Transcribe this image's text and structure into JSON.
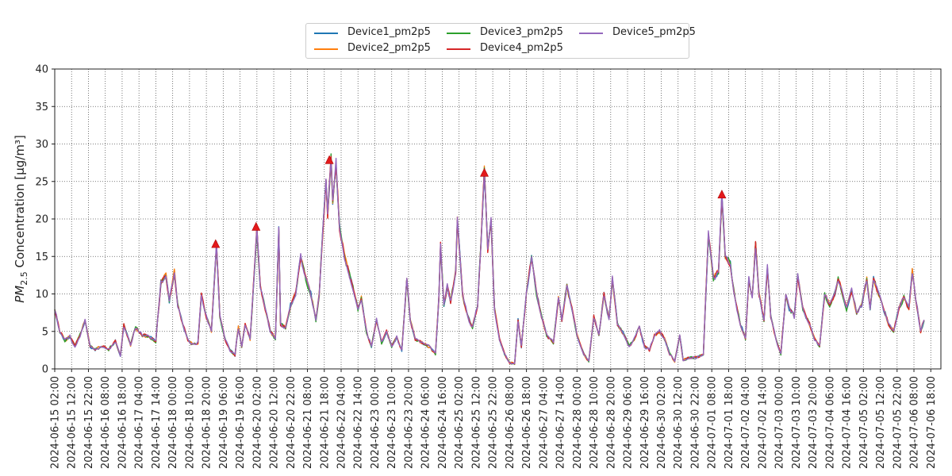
{
  "chart_data": {
    "type": "line",
    "ylabel": "PM2.5 Concentration [µg/m³]",
    "ylabel_parts": {
      "quantity": "PM",
      "subscript": "2.5",
      "rest": " Concentration [µg/m³]"
    },
    "ylim": [
      0,
      40
    ],
    "yticks": [
      "0",
      "5",
      "10",
      "15",
      "20",
      "25",
      "30",
      "35",
      "40"
    ],
    "x_range": [
      "2024-06-15 02:00",
      "2024-07-07 00:00"
    ],
    "grid": true,
    "legend_position": "top-center",
    "xtick_labels": [
      "2024-06-15 02:00",
      "2024-06-15 12:00",
      "2024-06-15 22:00",
      "2024-06-16 08:00",
      "2024-06-16 18:00",
      "2024-06-17 04:00",
      "2024-06-17 14:00",
      "2024-06-18 00:00",
      "2024-06-18 10:00",
      "2024-06-18 20:00",
      "2024-06-19 06:00",
      "2024-06-19 16:00",
      "2024-06-20 02:00",
      "2024-06-20 12:00",
      "2024-06-20 22:00",
      "2024-06-21 08:00",
      "2024-06-21 18:00",
      "2024-06-22 04:00",
      "2024-06-22 14:00",
      "2024-06-23 00:00",
      "2024-06-23 10:00",
      "2024-06-23 20:00",
      "2024-06-24 06:00",
      "2024-06-24 16:00",
      "2024-06-25 02:00",
      "2024-06-25 12:00",
      "2024-06-25 22:00",
      "2024-06-26 08:00",
      "2024-06-26 18:00",
      "2024-06-27 04:00",
      "2024-06-27 14:00",
      "2024-06-28 00:00",
      "2024-06-28 10:00",
      "2024-06-28 20:00",
      "2024-06-29 06:00",
      "2024-06-29 16:00",
      "2024-06-30 02:00",
      "2024-06-30 12:00",
      "2024-06-30 22:00",
      "2024-07-01 08:00",
      "2024-07-01 18:00",
      "2024-07-02 04:00",
      "2024-07-02 14:00",
      "2024-07-03 00:00",
      "2024-07-03 10:00",
      "2024-07-03 20:00",
      "2024-07-04 06:00",
      "2024-07-04 16:00",
      "2024-07-05 02:00",
      "2024-07-05 12:00",
      "2024-07-05 22:00",
      "2024-07-06 08:00",
      "2024-07-06 18:00"
    ],
    "series": [
      {
        "name": "Device1_pm2p5",
        "color": "#1f77b4"
      },
      {
        "name": "Device2_pm2p5",
        "color": "#ff7f0e"
      },
      {
        "name": "Device3_pm2p5",
        "color": "#2ca02c"
      },
      {
        "name": "Device4_pm2p5",
        "color": "#d62728"
      },
      {
        "name": "Device5_pm2p5",
        "color": "#9467bd"
      }
    ],
    "base_profile": [
      [
        "2024-06-15 02:00",
        8.0
      ],
      [
        "2024-06-15 05:00",
        5.0
      ],
      [
        "2024-06-15 08:00",
        3.8
      ],
      [
        "2024-06-15 11:00",
        4.3
      ],
      [
        "2024-06-15 14:00",
        3.0
      ],
      [
        "2024-06-15 17:00",
        4.5
      ],
      [
        "2024-06-15 20:00",
        6.5
      ],
      [
        "2024-06-15 23:00",
        3.0
      ],
      [
        "2024-06-16 02:00",
        2.6
      ],
      [
        "2024-06-16 06:00",
        3.0
      ],
      [
        "2024-06-16 10:00",
        2.6
      ],
      [
        "2024-06-16 14:00",
        3.7
      ],
      [
        "2024-06-16 17:00",
        1.8
      ],
      [
        "2024-06-16 19:00",
        5.8
      ],
      [
        "2024-06-16 23:00",
        3.2
      ],
      [
        "2024-06-17 02:00",
        5.5
      ],
      [
        "2024-06-17 06:00",
        4.5
      ],
      [
        "2024-06-17 10:00",
        4.3
      ],
      [
        "2024-06-17 14:00",
        3.6
      ],
      [
        "2024-06-17 17:00",
        11.5
      ],
      [
        "2024-06-17 20:00",
        12.5
      ],
      [
        "2024-06-17 22:00",
        9.0
      ],
      [
        "2024-06-18 01:00",
        13.0
      ],
      [
        "2024-06-18 03:00",
        8.5
      ],
      [
        "2024-06-18 06:00",
        6.0
      ],
      [
        "2024-06-18 09:00",
        3.8
      ],
      [
        "2024-06-18 12:00",
        3.2
      ],
      [
        "2024-06-18 15:00",
        3.5
      ],
      [
        "2024-06-18 17:00",
        9.8
      ],
      [
        "2024-06-18 20:00",
        7.0
      ],
      [
        "2024-06-18 23:00",
        5.0
      ],
      [
        "2024-06-19 02:00",
        16.5
      ],
      [
        "2024-06-19 04:00",
        7.0
      ],
      [
        "2024-06-19 07:00",
        4.0
      ],
      [
        "2024-06-19 10:00",
        2.5
      ],
      [
        "2024-06-19 13:00",
        1.8
      ],
      [
        "2024-06-19 15:00",
        5.5
      ],
      [
        "2024-06-19 17:00",
        3.0
      ],
      [
        "2024-06-19 19:00",
        6.0
      ],
      [
        "2024-06-19 22:00",
        4.0
      ],
      [
        "2024-06-20 02:00",
        18.5
      ],
      [
        "2024-06-20 04:00",
        11.0
      ],
      [
        "2024-06-20 07:00",
        8.0
      ],
      [
        "2024-06-20 10:00",
        5.0
      ],
      [
        "2024-06-20 13:00",
        4.0
      ],
      [
        "2024-06-20 15:00",
        18.5
      ],
      [
        "2024-06-20 16:00",
        6.0
      ],
      [
        "2024-06-20 19:00",
        5.5
      ],
      [
        "2024-06-20 22:00",
        8.5
      ],
      [
        "2024-06-21 01:00",
        10.0
      ],
      [
        "2024-06-21 04:00",
        15.0
      ],
      [
        "2024-06-21 07:00",
        12.0
      ],
      [
        "2024-06-21 10:00",
        10.0
      ],
      [
        "2024-06-21 13:00",
        6.5
      ],
      [
        "2024-06-21 15:00",
        10.0
      ],
      [
        "2024-06-21 17:00",
        18.0
      ],
      [
        "2024-06-21 19:00",
        25.0
      ],
      [
        "2024-06-21 20:00",
        20.5
      ],
      [
        "2024-06-21 22:00",
        28.0
      ],
      [
        "2024-06-21 23:00",
        22.0
      ],
      [
        "2024-06-22 01:00",
        27.5
      ],
      [
        "2024-06-22 03:00",
        19.0
      ],
      [
        "2024-06-22 06:00",
        15.0
      ],
      [
        "2024-06-22 09:00",
        12.5
      ],
      [
        "2024-06-22 12:00",
        10.0
      ],
      [
        "2024-06-22 14:00",
        8.0
      ],
      [
        "2024-06-22 16:00",
        9.5
      ],
      [
        "2024-06-22 19:00",
        5.0
      ],
      [
        "2024-06-22 22:00",
        3.0
      ],
      [
        "2024-06-23 01:00",
        6.5
      ],
      [
        "2024-06-23 04:00",
        3.5
      ],
      [
        "2024-06-23 07:00",
        5.0
      ],
      [
        "2024-06-23 10:00",
        3.0
      ],
      [
        "2024-06-23 13:00",
        4.2
      ],
      [
        "2024-06-23 16:00",
        2.5
      ],
      [
        "2024-06-23 19:00",
        12.0
      ],
      [
        "2024-06-23 21:00",
        6.5
      ],
      [
        "2024-06-24 00:00",
        4.0
      ],
      [
        "2024-06-24 04:00",
        3.5
      ],
      [
        "2024-06-24 08:00",
        3.0
      ],
      [
        "2024-06-24 12:00",
        2.0
      ],
      [
        "2024-06-24 14:00",
        9.5
      ],
      [
        "2024-06-24 15:00",
        16.5
      ],
      [
        "2024-06-24 17:00",
        8.5
      ],
      [
        "2024-06-24 19:00",
        11.0
      ],
      [
        "2024-06-24 21:00",
        9.0
      ],
      [
        "2024-06-25 00:00",
        13.0
      ],
      [
        "2024-06-25 01:00",
        20.0
      ],
      [
        "2024-06-25 04:00",
        10.0
      ],
      [
        "2024-06-25 07:00",
        7.0
      ],
      [
        "2024-06-25 10:00",
        5.5
      ],
      [
        "2024-06-25 13:00",
        8.5
      ],
      [
        "2024-06-25 15:00",
        17.0
      ],
      [
        "2024-06-25 17:00",
        26.5
      ],
      [
        "2024-06-25 19:00",
        16.0
      ],
      [
        "2024-06-25 21:00",
        20.0
      ],
      [
        "2024-06-25 23:00",
        8.0
      ],
      [
        "2024-06-26 02:00",
        4.0
      ],
      [
        "2024-06-26 05:00",
        2.0
      ],
      [
        "2024-06-26 08:00",
        0.8
      ],
      [
        "2024-06-26 11:00",
        0.7
      ],
      [
        "2024-06-26 13:00",
        6.5
      ],
      [
        "2024-06-26 15:00",
        3.0
      ],
      [
        "2024-06-26 18:00",
        10.0
      ],
      [
        "2024-06-26 21:00",
        15.0
      ],
      [
        "2024-06-27 00:00",
        10.0
      ],
      [
        "2024-06-27 03:00",
        7.0
      ],
      [
        "2024-06-27 06:00",
        4.5
      ],
      [
        "2024-06-27 10:00",
        3.5
      ],
      [
        "2024-06-27 13:00",
        9.5
      ],
      [
        "2024-06-27 15:00",
        6.5
      ],
      [
        "2024-06-27 18:00",
        11.0
      ],
      [
        "2024-06-27 21:00",
        8.0
      ],
      [
        "2024-06-28 00:00",
        4.5
      ],
      [
        "2024-06-28 04:00",
        2.0
      ],
      [
        "2024-06-28 07:00",
        1.0
      ],
      [
        "2024-06-28 10:00",
        7.0
      ],
      [
        "2024-06-28 13:00",
        4.5
      ],
      [
        "2024-06-28 16:00",
        10.0
      ],
      [
        "2024-06-28 19:00",
        6.5
      ],
      [
        "2024-06-28 21:00",
        12.0
      ],
      [
        "2024-06-29 00:00",
        6.0
      ],
      [
        "2024-06-29 04:00",
        4.5
      ],
      [
        "2024-06-29 07:00",
        3.0
      ],
      [
        "2024-06-29 10:00",
        4.0
      ],
      [
        "2024-06-29 13:00",
        5.5
      ],
      [
        "2024-06-29 16:00",
        3.0
      ],
      [
        "2024-06-29 19:00",
        2.5
      ],
      [
        "2024-06-29 22:00",
        4.5
      ],
      [
        "2024-06-30 01:00",
        5.0
      ],
      [
        "2024-06-30 04:00",
        4.0
      ],
      [
        "2024-06-30 07:00",
        2.0
      ],
      [
        "2024-06-30 10:00",
        1.0
      ],
      [
        "2024-06-30 13:00",
        4.5
      ],
      [
        "2024-06-30 15:00",
        1.2
      ],
      [
        "2024-06-30 19:00",
        1.5
      ],
      [
        "2024-06-30 23:00",
        1.5
      ],
      [
        "2024-07-01 03:00",
        2.0
      ],
      [
        "2024-07-01 06:00",
        18.0
      ],
      [
        "2024-07-01 09:00",
        12.0
      ],
      [
        "2024-07-01 12:00",
        13.0
      ],
      [
        "2024-07-01 14:00",
        23.0
      ],
      [
        "2024-07-01 16:00",
        15.0
      ],
      [
        "2024-07-01 19:00",
        14.0
      ],
      [
        "2024-07-01 22:00",
        9.0
      ],
      [
        "2024-07-02 01:00",
        6.0
      ],
      [
        "2024-07-02 04:00",
        4.0
      ],
      [
        "2024-07-02 06:00",
        12.0
      ],
      [
        "2024-07-02 08:00",
        9.5
      ],
      [
        "2024-07-02 10:00",
        16.5
      ],
      [
        "2024-07-02 12:00",
        10.0
      ],
      [
        "2024-07-02 15:00",
        6.5
      ],
      [
        "2024-07-02 17:00",
        13.5
      ],
      [
        "2024-07-02 19:00",
        7.0
      ],
      [
        "2024-07-02 22:00",
        4.0
      ],
      [
        "2024-07-03 01:00",
        2.0
      ],
      [
        "2024-07-03 04:00",
        10.0
      ],
      [
        "2024-07-03 06:00",
        8.0
      ],
      [
        "2024-07-03 09:00",
        7.0
      ],
      [
        "2024-07-03 11:00",
        12.5
      ],
      [
        "2024-07-03 14:00",
        8.0
      ],
      [
        "2024-07-03 18:00",
        6.0
      ],
      [
        "2024-07-03 21:00",
        4.0
      ],
      [
        "2024-07-04 00:00",
        3.0
      ],
      [
        "2024-07-04 03:00",
        10.0
      ],
      [
        "2024-07-04 06:00",
        8.5
      ],
      [
        "2024-07-04 09:00",
        10.0
      ],
      [
        "2024-07-04 11:00",
        12.0
      ],
      [
        "2024-07-04 13:00",
        10.5
      ],
      [
        "2024-07-04 16:00",
        8.0
      ],
      [
        "2024-07-04 19:00",
        10.5
      ],
      [
        "2024-07-04 22:00",
        7.5
      ],
      [
        "2024-07-05 01:00",
        8.5
      ],
      [
        "2024-07-05 04:00",
        12.0
      ],
      [
        "2024-07-05 06:00",
        8.0
      ],
      [
        "2024-07-05 08:00",
        12.0
      ],
      [
        "2024-07-05 11:00",
        10.0
      ],
      [
        "2024-07-05 14:00",
        8.0
      ],
      [
        "2024-07-05 17:00",
        6.0
      ],
      [
        "2024-07-05 20:00",
        5.0
      ],
      [
        "2024-07-05 23:00",
        8.0
      ],
      [
        "2024-07-06 02:00",
        9.5
      ],
      [
        "2024-07-06 05:00",
        8.0
      ],
      [
        "2024-07-06 07:00",
        13.0
      ],
      [
        "2024-07-06 10:00",
        8.0
      ],
      [
        "2024-07-06 12:00",
        5.0
      ],
      [
        "2024-07-06 14:00",
        6.5
      ]
    ],
    "peak_markers": [
      [
        "2024-06-19 01:30",
        16.6
      ],
      [
        "2024-06-20 01:30",
        18.9
      ],
      [
        "2024-06-21 21:00",
        27.8
      ],
      [
        "2024-06-25 17:00",
        26.1
      ],
      [
        "2024-07-01 14:00",
        23.2
      ]
    ],
    "peak_marker_color": "#e31a1c"
  }
}
